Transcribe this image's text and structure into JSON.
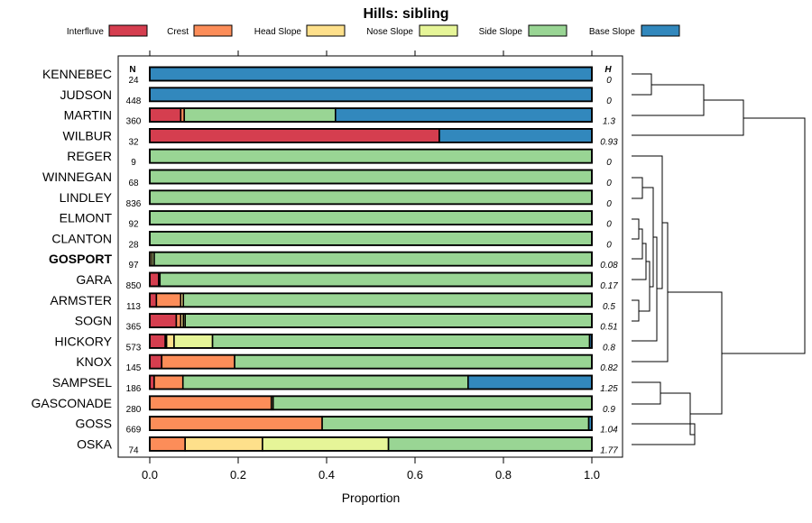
{
  "chart_data": {
    "type": "bar",
    "orientation": "horizontal",
    "stacked": true,
    "title": "Hills: sibling",
    "xlabel": "Proportion",
    "xlim": [
      0,
      1
    ],
    "xticks": [
      "0.0",
      "0.2",
      "0.4",
      "0.6",
      "0.8",
      "1.0"
    ],
    "count_header": "N",
    "h_header": "H",
    "highlighted_category": "GOSPORT",
    "legend": [
      {
        "name": "Interfluve",
        "color": "#d53e4f"
      },
      {
        "name": "Crest",
        "color": "#fc8d59"
      },
      {
        "name": "Head Slope",
        "color": "#fee08b"
      },
      {
        "name": "Nose Slope",
        "color": "#e6f598"
      },
      {
        "name": "Side Slope",
        "color": "#99d594"
      },
      {
        "name": "Base Slope",
        "color": "#3288bd"
      }
    ],
    "categories": [
      "KENNEBEC",
      "JUDSON",
      "MARTIN",
      "WILBUR",
      "REGER",
      "WINNEGAN",
      "LINDLEY",
      "ELMONT",
      "CLANTON",
      "GOSPORT",
      "GARA",
      "ARMSTER",
      "SOGN",
      "HICKORY",
      "KNOX",
      "SAMPSEL",
      "GASCONADE",
      "GOSS",
      "OSKA"
    ],
    "counts": [
      "24",
      "448",
      "360",
      "32",
      "9",
      "68",
      "836",
      "92",
      "28",
      "97",
      "850",
      "113",
      "365",
      "573",
      "145",
      "186",
      "280",
      "669",
      "74"
    ],
    "h_values": [
      "0",
      "0",
      "1.3",
      "0.93",
      "0",
      "0",
      "0",
      "0",
      "0",
      "0.08",
      "0.17",
      "0.5",
      "0.51",
      "0.8",
      "0.82",
      "1.25",
      "0.9",
      "1.04",
      "1.77"
    ],
    "series": [
      {
        "name": "Interfluve",
        "values": [
          0,
          0,
          0.07,
          0.655,
          0,
          0,
          0,
          0,
          0,
          0,
          0.02,
          0.015,
          0.06,
          0.035,
          0.027,
          0.01,
          0,
          0,
          0
        ]
      },
      {
        "name": "Crest",
        "values": [
          0,
          0,
          0.008,
          0,
          0,
          0,
          0,
          0,
          0,
          0,
          0.003,
          0.055,
          0.01,
          0.003,
          0.165,
          0.065,
          0.275,
          0.39,
          0.08
        ]
      },
      {
        "name": "Head Slope",
        "values": [
          0,
          0,
          0,
          0,
          0,
          0,
          0,
          0,
          0,
          0.005,
          0,
          0.006,
          0.006,
          0.017,
          0,
          0,
          0.004,
          0,
          0.175
        ]
      },
      {
        "name": "Nose Slope",
        "values": [
          0,
          0,
          0,
          0,
          0,
          0,
          0,
          0,
          0,
          0.005,
          0,
          0,
          0.004,
          0.087,
          0,
          0,
          0,
          0,
          0.285
        ]
      },
      {
        "name": "Side Slope",
        "values": [
          0,
          0,
          0.342,
          0,
          1,
          1,
          1,
          1,
          1,
          0.99,
          0.977,
          0.924,
          0.92,
          0.853,
          0.808,
          0.645,
          0.721,
          0.603,
          0.46
        ]
      },
      {
        "name": "Base Slope",
        "values": [
          1,
          1,
          0.58,
          0.345,
          0,
          0,
          0,
          0,
          0,
          0,
          0,
          0,
          0,
          0.005,
          0,
          0.28,
          0,
          0.007,
          0
        ]
      }
    ]
  }
}
